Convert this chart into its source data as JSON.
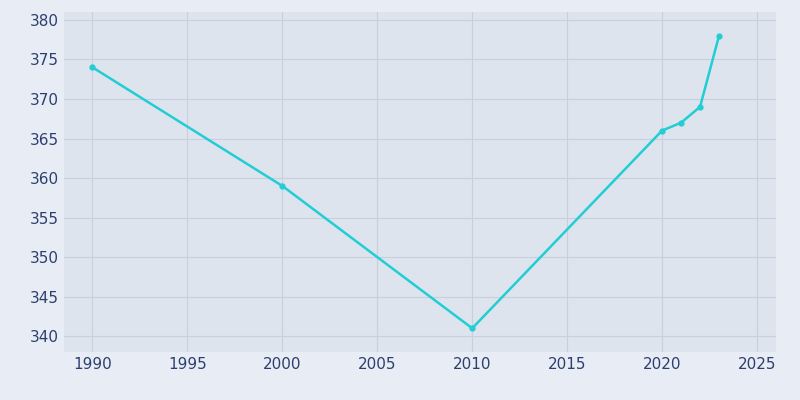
{
  "years": [
    1990,
    2000,
    2010,
    2020,
    2021,
    2022,
    2023
  ],
  "values": [
    374,
    359,
    341,
    366,
    367,
    369,
    378
  ],
  "line_color": "#22cdd4",
  "fig_bg_color": "#e8edf5",
  "plot_bg_color": "#dde4ee",
  "grid_color": "#c8d0de",
  "tick_color": "#2d3f6e",
  "xlim": [
    1988.5,
    2026
  ],
  "ylim": [
    338,
    381
  ],
  "xticks": [
    1990,
    1995,
    2000,
    2005,
    2010,
    2015,
    2020,
    2025
  ],
  "yticks": [
    340,
    345,
    350,
    355,
    360,
    365,
    370,
    375,
    380
  ],
  "linewidth": 1.8,
  "marker": "o",
  "markersize": 3.5,
  "tick_fontsize": 11
}
